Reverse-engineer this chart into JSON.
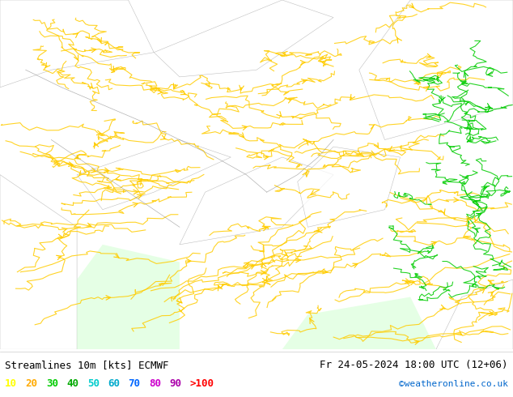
{
  "title_left": "Streamlines 10m [kts] ECMWF",
  "title_right": "Fr 24-05-2024 18:00 UTC (12+06)",
  "credit": "©weatheronline.co.uk",
  "legend_values": [
    "10",
    "20",
    "30",
    "40",
    "50",
    "60",
    "70",
    "80",
    "90",
    ">100"
  ],
  "legend_colors_mapped": [
    "#ffff00",
    "#ffaa00",
    "#00cc00",
    "#00aa00",
    "#00cccc",
    "#00aacc",
    "#0066ff",
    "#cc00cc",
    "#aa00aa",
    "#ff0000"
  ],
  "bg_color": "#aaffaa",
  "white_color": "#ffffff",
  "light_green": "#ccffcc",
  "gray_border": "#888888",
  "credit_color": "#0066cc",
  "fig_width": 6.34,
  "fig_height": 4.9,
  "dpi": 100,
  "yellow_color": "#ffcc00",
  "green_color": "#00cc00",
  "cyan_color": "#00ccff"
}
